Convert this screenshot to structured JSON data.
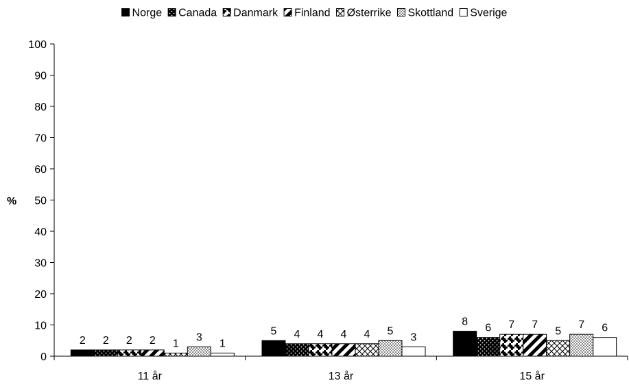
{
  "chart_data": {
    "type": "bar",
    "ylabel": "%",
    "ylim": [
      0,
      100
    ],
    "yticks": [
      "0",
      "10",
      "20",
      "30",
      "40",
      "50",
      "60",
      "70",
      "80",
      "90",
      "100"
    ],
    "categories": [
      "11 år",
      "13 år",
      "15 år"
    ],
    "legend_position": "top",
    "grid": false,
    "series": [
      {
        "name": "Norge",
        "values": [
          2,
          5,
          8
        ],
        "pattern": "solid-black"
      },
      {
        "name": "Canada",
        "values": [
          2,
          4,
          6
        ],
        "pattern": "dots-black"
      },
      {
        "name": "Danmark",
        "values": [
          2,
          4,
          7
        ],
        "pattern": "checker-circles"
      },
      {
        "name": "Finland",
        "values": [
          2,
          4,
          7
        ],
        "pattern": "diagonal-bold"
      },
      {
        "name": "Østerrike",
        "values": [
          1,
          4,
          5
        ],
        "pattern": "zigzag"
      },
      {
        "name": "Skottland",
        "values": [
          3,
          5,
          7
        ],
        "pattern": "fine-dots"
      },
      {
        "name": "Sverige",
        "values": [
          1,
          3,
          6
        ],
        "pattern": "white"
      }
    ]
  }
}
